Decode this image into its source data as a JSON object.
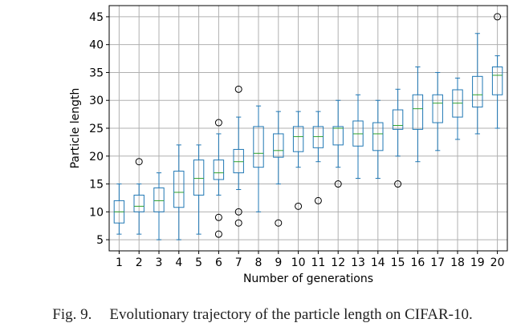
{
  "chart_data": {
    "type": "boxplot",
    "xlabel": "Number of generations",
    "ylabel": "Particle length",
    "ylim": [
      3,
      47
    ],
    "yticks": [
      5,
      10,
      15,
      20,
      25,
      30,
      35,
      40,
      45
    ],
    "grid": true,
    "colors": {
      "box": "#1f77b4",
      "median": "#2ca02c",
      "axis": "#000000",
      "grid": "#b0b0b0"
    },
    "categories": [
      "1",
      "2",
      "3",
      "4",
      "5",
      "6",
      "7",
      "8",
      "9",
      "10",
      "11",
      "12",
      "13",
      "14",
      "15",
      "16",
      "17",
      "18",
      "19",
      "20"
    ],
    "boxes": [
      {
        "whislo": 6,
        "q1": 8,
        "med": 10,
        "q3": 12,
        "whishi": 15,
        "fliers": []
      },
      {
        "whislo": 6,
        "q1": 10,
        "med": 11,
        "q3": 13,
        "whishi": 15,
        "fliers": [
          19
        ]
      },
      {
        "whislo": 5,
        "q1": 10,
        "med": 12,
        "q3": 14.3,
        "whishi": 17,
        "fliers": []
      },
      {
        "whislo": 5,
        "q1": 10.8,
        "med": 13.5,
        "q3": 17.3,
        "whishi": 22,
        "fliers": []
      },
      {
        "whislo": 6,
        "q1": 13,
        "med": 16,
        "q3": 19.3,
        "whishi": 22,
        "fliers": []
      },
      {
        "whislo": 13,
        "q1": 15.8,
        "med": 17,
        "q3": 19.3,
        "whishi": 24,
        "fliers": [
          26,
          9,
          6
        ]
      },
      {
        "whislo": 14,
        "q1": 17,
        "med": 19,
        "q3": 21.2,
        "whishi": 27,
        "fliers": [
          32,
          10,
          8
        ]
      },
      {
        "whislo": 10,
        "q1": 18,
        "med": 20.5,
        "q3": 25.3,
        "whishi": 29,
        "fliers": []
      },
      {
        "whislo": 15,
        "q1": 19.8,
        "med": 21,
        "q3": 24,
        "whishi": 28,
        "fliers": [
          8
        ]
      },
      {
        "whislo": 18,
        "q1": 20.8,
        "med": 23.5,
        "q3": 25.3,
        "whishi": 28,
        "fliers": [
          11
        ]
      },
      {
        "whislo": 19,
        "q1": 21.5,
        "med": 23.5,
        "q3": 25.3,
        "whishi": 28,
        "fliers": [
          12
        ]
      },
      {
        "whislo": 18,
        "q1": 22,
        "med": 25,
        "q3": 25.3,
        "whishi": 30,
        "fliers": [
          15
        ]
      },
      {
        "whislo": 16,
        "q1": 21.8,
        "med": 24,
        "q3": 26.3,
        "whishi": 31,
        "fliers": []
      },
      {
        "whislo": 16,
        "q1": 21,
        "med": 24,
        "q3": 26,
        "whishi": 30,
        "fliers": []
      },
      {
        "whislo": 20,
        "q1": 24.8,
        "med": 25.5,
        "q3": 28.3,
        "whishi": 32,
        "fliers": [
          15
        ]
      },
      {
        "whislo": 19,
        "q1": 24.8,
        "med": 28.5,
        "q3": 31,
        "whishi": 36,
        "fliers": []
      },
      {
        "whislo": 21,
        "q1": 26,
        "med": 29.5,
        "q3": 31,
        "whishi": 35,
        "fliers": []
      },
      {
        "whislo": 23,
        "q1": 27,
        "med": 29.5,
        "q3": 31.9,
        "whishi": 34,
        "fliers": []
      },
      {
        "whislo": 24,
        "q1": 28.8,
        "med": 31,
        "q3": 34.3,
        "whishi": 42,
        "fliers": []
      },
      {
        "whislo": 25,
        "q1": 31,
        "med": 34.5,
        "q3": 36,
        "whishi": 38,
        "fliers": [
          45
        ]
      }
    ]
  },
  "caption": {
    "label": "Fig. 9.",
    "text": "Evolutionary trajectory of the particle length on CIFAR-10."
  }
}
